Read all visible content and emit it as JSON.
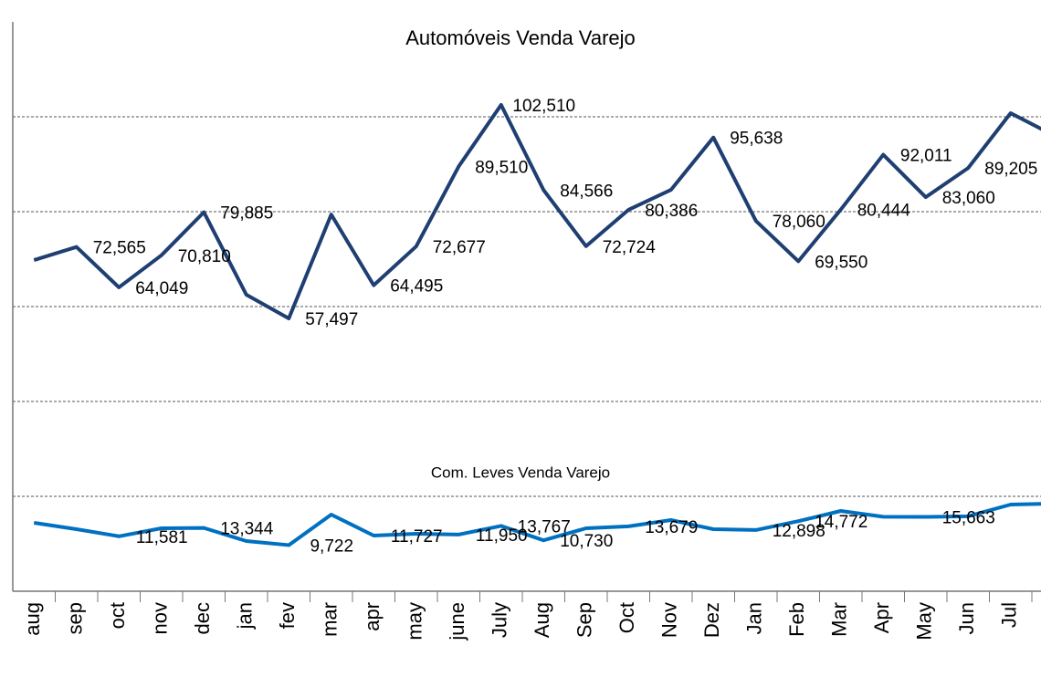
{
  "chart_data": {
    "type": "line",
    "categories": [
      "aug",
      "sep",
      "oct",
      "nov",
      "dec",
      "jan",
      "fev",
      "mar",
      "apr",
      "may",
      "june",
      "July",
      "Aug",
      "Sep",
      "Oct",
      "Nov",
      "Dez",
      "Jan",
      "Feb",
      "Mar",
      "Apr",
      "May",
      "Jun",
      "Jul",
      null
    ],
    "series": [
      {
        "name": "Automóveis Venda Varejo",
        "color": "#1f3f73",
        "values": [
          69800,
          72565,
          64049,
          70810,
          79885,
          62500,
          57497,
          79400,
          64495,
          72677,
          89510,
          102510,
          84566,
          72724,
          80386,
          84600,
          95638,
          78060,
          69550,
          80444,
          92011,
          83060,
          89205,
          100770,
          96150
        ],
        "value_labels": [
          null,
          "72,565",
          "64,049",
          "70,810",
          "79,885",
          null,
          "57,497",
          null,
          "64,495",
          "72,677",
          "89,510",
          "102,510",
          "84,566",
          "72,724",
          "80,386",
          null,
          "95,638",
          "78,060",
          "69,550",
          "80,444",
          "92,011",
          "83,060",
          "89,205",
          null,
          null
        ]
      },
      {
        "name": "Com. Leves Venda Varejo",
        "color": "#0070c0",
        "values": [
          14423,
          13077,
          11581,
          13270,
          13344,
          10577,
          9722,
          16154,
          11727,
          12115,
          11950,
          13767,
          10730,
          13270,
          13679,
          15000,
          13077,
          12898,
          14772,
          16923,
          15700,
          15663,
          15800,
          18269,
          18460
        ],
        "value_labels": [
          null,
          null,
          "11,581",
          null,
          "13,344",
          null,
          "9,722",
          null,
          "11,727",
          null,
          "11,950",
          "13,767",
          "10,730",
          null,
          "13,679",
          null,
          null,
          "12,898",
          "14,772",
          null,
          null,
          "15,663",
          null,
          null,
          null
        ]
      }
    ],
    "ylim": [
      0,
      120000
    ],
    "yticks": [
      0,
      20000,
      40000,
      60000,
      80000,
      100000
    ],
    "grid": true
  }
}
